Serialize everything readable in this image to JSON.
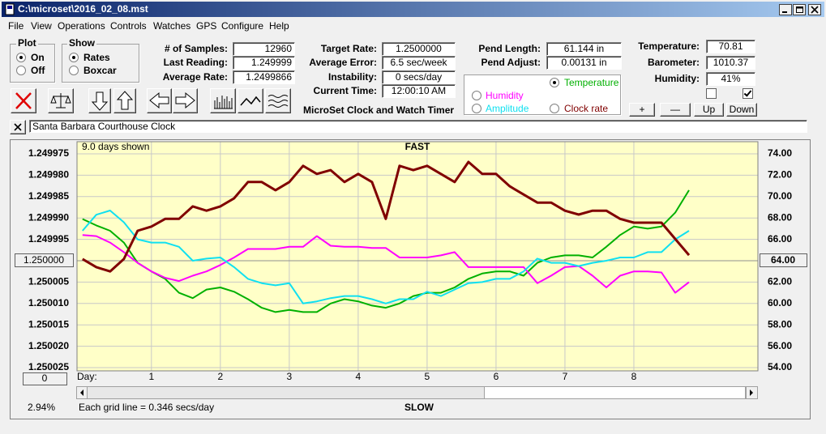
{
  "window": {
    "title": "C:\\microset\\2016_02_08.mst"
  },
  "menu": [
    "File",
    "View",
    "Operations",
    "Controls",
    "Watches",
    "GPS",
    "Configure",
    "Help"
  ],
  "plot_group": {
    "title": "Plot",
    "options": [
      "On",
      "Off"
    ],
    "selected": 0
  },
  "show_group": {
    "title": "Show",
    "options": [
      "Rates",
      "Boxcar"
    ],
    "selected": 0
  },
  "fields": [
    {
      "label": "# of Samples:",
      "value": "12960"
    },
    {
      "label": "Last Reading:",
      "value": "1.249999"
    },
    {
      "label": "Average Rate:",
      "value": "1.2499866"
    },
    {
      "label": "Target Rate:",
      "value": "1.2500000"
    },
    {
      "label": "Average Error:",
      "value": "6.5 sec/week"
    },
    {
      "label": "Instability:",
      "value": "0 secs/day"
    },
    {
      "label": "Current Time:",
      "value": "12:00:10 AM"
    },
    {
      "label": "Pend Length:",
      "value": "61.144 in"
    },
    {
      "label": "Pend Adjust:",
      "value": "0.00131 in"
    },
    {
      "label": "Temperature:",
      "value": "70.81"
    },
    {
      "label": "Barometer:",
      "value": "1010.37"
    },
    {
      "label": "Humidity:",
      "value": "41%"
    }
  ],
  "app_name": "MicroSet Clock and Watch Timer",
  "plot_selector": {
    "selected": 0
  },
  "checkboxes": [
    false,
    true
  ],
  "buttons": [
    "+",
    "—",
    "Up",
    "Down"
  ],
  "clock_name": "Santa Barbara Courthouse Clock",
  "chart_data": {
    "type": "line",
    "days_shown": "9.0 days shown",
    "top_label": "FAST",
    "bottom_label": "SLOW",
    "x_label": "Day:",
    "zoom": "0",
    "percent": "2.94%",
    "grid_note": "Each grid line = 0.346 secs/day",
    "grid": true,
    "xlim": [
      -0.08,
      9.8
    ],
    "xticks": [
      1,
      2,
      3,
      4,
      5,
      6,
      7,
      8
    ],
    "ylim": [
      1.250025,
      1.249975
    ],
    "yticks": [
      1.249975,
      {
        "value": 1.24998,
        "label": "1.249980"
      },
      1.249985,
      {
        "value": 1.24999,
        "label": "1.249990"
      },
      1.249995,
      {
        "value": 1.25,
        "label": "1.250000"
      },
      1.250005,
      {
        "value": 1.25001,
        "label": "1.250010"
      },
      1.250015,
      {
        "value": 1.25002,
        "label": "1.250020"
      },
      1.250025
    ],
    "y2lim": [
      54,
      74
    ],
    "y2ticks": [
      {
        "value": 74,
        "label": "74.00"
      },
      {
        "value": 72,
        "label": "72.00"
      },
      {
        "value": 70,
        "label": "70.00"
      },
      {
        "value": 68,
        "label": "68.00"
      },
      {
        "value": 66,
        "label": "66.00"
      },
      {
        "value": 64,
        "label": "64.00"
      },
      {
        "value": 62,
        "label": "62.00"
      },
      {
        "value": 60,
        "label": "60.00"
      },
      {
        "value": 58,
        "label": "58.00"
      },
      {
        "value": 56,
        "label": "56.00"
      },
      {
        "value": 54,
        "label": "54.00"
      }
    ],
    "x": [
      0,
      0.2,
      0.4,
      0.6,
      0.8,
      1,
      1.2,
      1.4,
      1.6,
      1.8,
      2,
      2.2,
      2.4,
      2.6,
      2.8,
      3,
      3.2,
      3.4,
      3.6,
      3.8,
      4,
      4.2,
      4.4,
      4.6,
      4.8,
      5,
      5.2,
      5.4,
      5.6,
      5.8,
      6,
      6.2,
      6.4,
      6.6,
      6.8,
      7,
      7.2,
      7.4,
      7.6,
      7.8,
      8,
      8.2,
      8.4,
      8.6,
      8.8
    ],
    "series": [
      {
        "name": "Temperature",
        "color": "#00b000",
        "axis": "y2",
        "values": [
          67.9,
          67.3,
          66.8,
          65.7,
          63.8,
          63.0,
          62.3,
          61.0,
          60.5,
          61.3,
          61.5,
          61.1,
          60.4,
          59.6,
          59.2,
          59.4,
          59.2,
          59.2,
          60.0,
          60.4,
          60.2,
          59.8,
          59.6,
          60.0,
          60.7,
          61.0,
          61.0,
          61.5,
          62.3,
          62.8,
          63.0,
          63.0,
          62.6,
          63.8,
          64.3,
          64.5,
          64.5,
          64.3,
          65.3,
          66.4,
          67.2,
          67.0,
          67.2,
          68.5,
          70.6
        ]
      },
      {
        "name": "Humidity",
        "color": "#ff00ff",
        "axis": "y2",
        "values": [
          66.4,
          66.3,
          65.7,
          64.8,
          63.8,
          63.0,
          62.4,
          62.1,
          62.6,
          63.0,
          63.6,
          64.3,
          65.1,
          65.1,
          65.1,
          65.3,
          65.3,
          66.3,
          65.4,
          65.3,
          65.3,
          65.2,
          65.2,
          64.3,
          64.3,
          64.3,
          64.5,
          64.8,
          63.4,
          63.4,
          63.4,
          63.4,
          63.4,
          61.9,
          62.6,
          63.4,
          63.5,
          62.6,
          61.5,
          62.6,
          63.0,
          63.0,
          62.9,
          61.0,
          62.0
        ]
      },
      {
        "name": "Amplitude",
        "color": "#10e0f0",
        "axis": "y2",
        "values": [
          66.8,
          68.3,
          68.7,
          67.6,
          66.0,
          65.7,
          65.7,
          65.3,
          64.0,
          64.2,
          64.3,
          63.4,
          62.3,
          61.9,
          61.7,
          61.9,
          60.0,
          60.2,
          60.5,
          60.7,
          60.7,
          60.4,
          60.0,
          60.4,
          60.4,
          61.1,
          60.7,
          61.3,
          61.9,
          62.0,
          62.3,
          62.3,
          63.0,
          64.2,
          63.8,
          63.8,
          63.5,
          63.8,
          64.0,
          64.3,
          64.3,
          64.8,
          64.8,
          66.0,
          66.8
        ]
      },
      {
        "name": "Clock rate",
        "color": "#800000",
        "values": [
          1.2499996,
          1.2500015,
          1.2500025,
          1.2499996,
          1.249993,
          1.249992,
          1.2499902,
          1.2499902,
          1.2499873,
          1.2499883,
          1.2499873,
          1.2499854,
          1.2499816,
          1.2499816,
          1.2499835,
          1.2499816,
          1.2499778,
          1.2499797,
          1.2499788,
          1.2499816,
          1.2499797,
          1.2499816,
          1.2499902,
          1.2499778,
          1.2499788,
          1.2499778,
          1.2499797,
          1.2499816,
          1.2499769,
          1.2499797,
          1.2499797,
          1.2499826,
          1.2499845,
          1.2499864,
          1.2499864,
          1.2499883,
          1.2499892,
          1.2499883,
          1.2499883,
          1.2499902,
          1.2499911,
          1.2499911,
          1.2499911,
          1.2499949,
          1.2499987
        ]
      }
    ]
  }
}
